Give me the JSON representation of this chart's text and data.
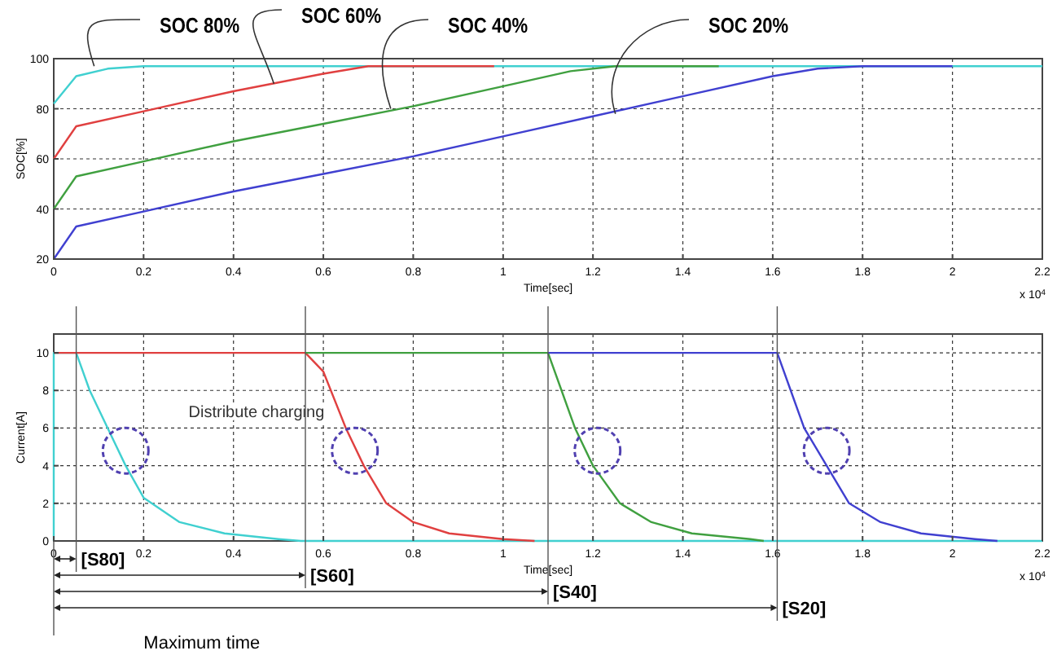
{
  "chart_data": [
    {
      "type": "line",
      "xlabel": "Time[sec]",
      "ylabel": "SOC[%]",
      "xlim": [
        0,
        2.2
      ],
      "ylim": [
        20,
        100
      ],
      "xticks": [
        0,
        0.2,
        0.4,
        0.6,
        0.8,
        1,
        1.2,
        1.4,
        1.6,
        1.8,
        2,
        2.2
      ],
      "yticks": [
        20,
        40,
        60,
        80,
        100
      ],
      "grid": true,
      "line_style": "solid",
      "series": [
        {
          "color": "#40d0d0",
          "x": [
            0,
            0.05,
            0.12,
            0.2,
            1,
            2.2
          ],
          "values": [
            82,
            93,
            96,
            97,
            97,
            97
          ]
        },
        {
          "color": "#e04040",
          "x": [
            0,
            0.05,
            0.2,
            0.4,
            0.6,
            0.7,
            0.98
          ],
          "values": [
            60,
            73,
            79,
            87,
            94,
            97,
            97
          ]
        },
        {
          "color": "#40a040",
          "x": [
            0,
            0.05,
            0.2,
            0.4,
            0.6,
            0.8,
            1,
            1.15,
            1.25,
            1.48
          ],
          "values": [
            40,
            53,
            59,
            67,
            74,
            81,
            89,
            95,
            97,
            97
          ]
        },
        {
          "color": "#4040d0",
          "x": [
            0,
            0.05,
            0.2,
            0.4,
            0.6,
            0.8,
            1,
            1.2,
            1.4,
            1.6,
            1.7,
            1.8,
            2
          ],
          "values": [
            20,
            33,
            39,
            47,
            54,
            61,
            69,
            77,
            85,
            93,
            96,
            97,
            97
          ]
        }
      ],
      "annotations": [
        {
          "text": "SOC 80%",
          "x": 0.09,
          "y": 97
        },
        {
          "text": "SOC 60%",
          "x": 0.49,
          "y": 90
        },
        {
          "text": "SOC 40%",
          "x": 0.75,
          "y": 80
        },
        {
          "text": "SOC 20%",
          "x": 1.25,
          "y": 78
        },
        "x 10$^{4}$"
      ]
    },
    {
      "type": "line",
      "xlabel": "Time[sec]",
      "ylabel": "Current[A]",
      "xlim": [
        0,
        2.2
      ],
      "ylim": [
        0,
        11
      ],
      "xticks": [
        0,
        0.2,
        0.4,
        0.6,
        0.8,
        1,
        1.2,
        1.4,
        1.6,
        1.8,
        2,
        2.2
      ],
      "yticks": [
        0,
        2,
        4,
        6,
        8,
        10
      ],
      "grid": true,
      "line_style": "solid",
      "series": [
        {
          "color": "#40d0d0",
          "x": [
            0,
            0,
            0.05,
            0.08,
            0.12,
            0.16,
            0.2,
            0.28,
            0.38,
            0.5,
            0.55,
            2.2
          ],
          "values": [
            0,
            10,
            10,
            8,
            6,
            4,
            2.3,
            1,
            0.4,
            0.1,
            0,
            0
          ]
        },
        {
          "color": "#e04040",
          "x": [
            0,
            0.56,
            0.6,
            0.65,
            0.69,
            0.74,
            0.8,
            0.88,
            1,
            1.07
          ],
          "values": [
            10,
            10,
            9,
            6,
            4,
            2,
            1,
            0.4,
            0.1,
            0
          ]
        },
        {
          "color": "#40a040",
          "x": [
            0.56,
            1.1,
            1.13,
            1.16,
            1.2,
            1.26,
            1.33,
            1.42,
            1.55,
            1.58
          ],
          "values": [
            10,
            10,
            8,
            6,
            4,
            2,
            1,
            0.4,
            0.1,
            0
          ]
        },
        {
          "color": "#4040d0",
          "x": [
            1.1,
            1.61,
            1.64,
            1.67,
            1.72,
            1.77,
            1.84,
            1.93,
            2.05,
            2.1
          ],
          "values": [
            10,
            10,
            8,
            6,
            4,
            2,
            1,
            0.4,
            0.1,
            0
          ]
        }
      ],
      "ref_lines": [
        {
          "axis": "x",
          "value": 0.05,
          "label": "[S80]"
        },
        {
          "axis": "x",
          "value": 0.56,
          "label": "[S60]"
        },
        {
          "axis": "x",
          "value": 1.1,
          "label": "[S40]"
        },
        {
          "axis": "x",
          "value": 1.61,
          "label": "[S20]"
        }
      ],
      "annotations": [
        "Distribute charging",
        "x 10$^{4}$",
        "Maximum time"
      ]
    }
  ]
}
